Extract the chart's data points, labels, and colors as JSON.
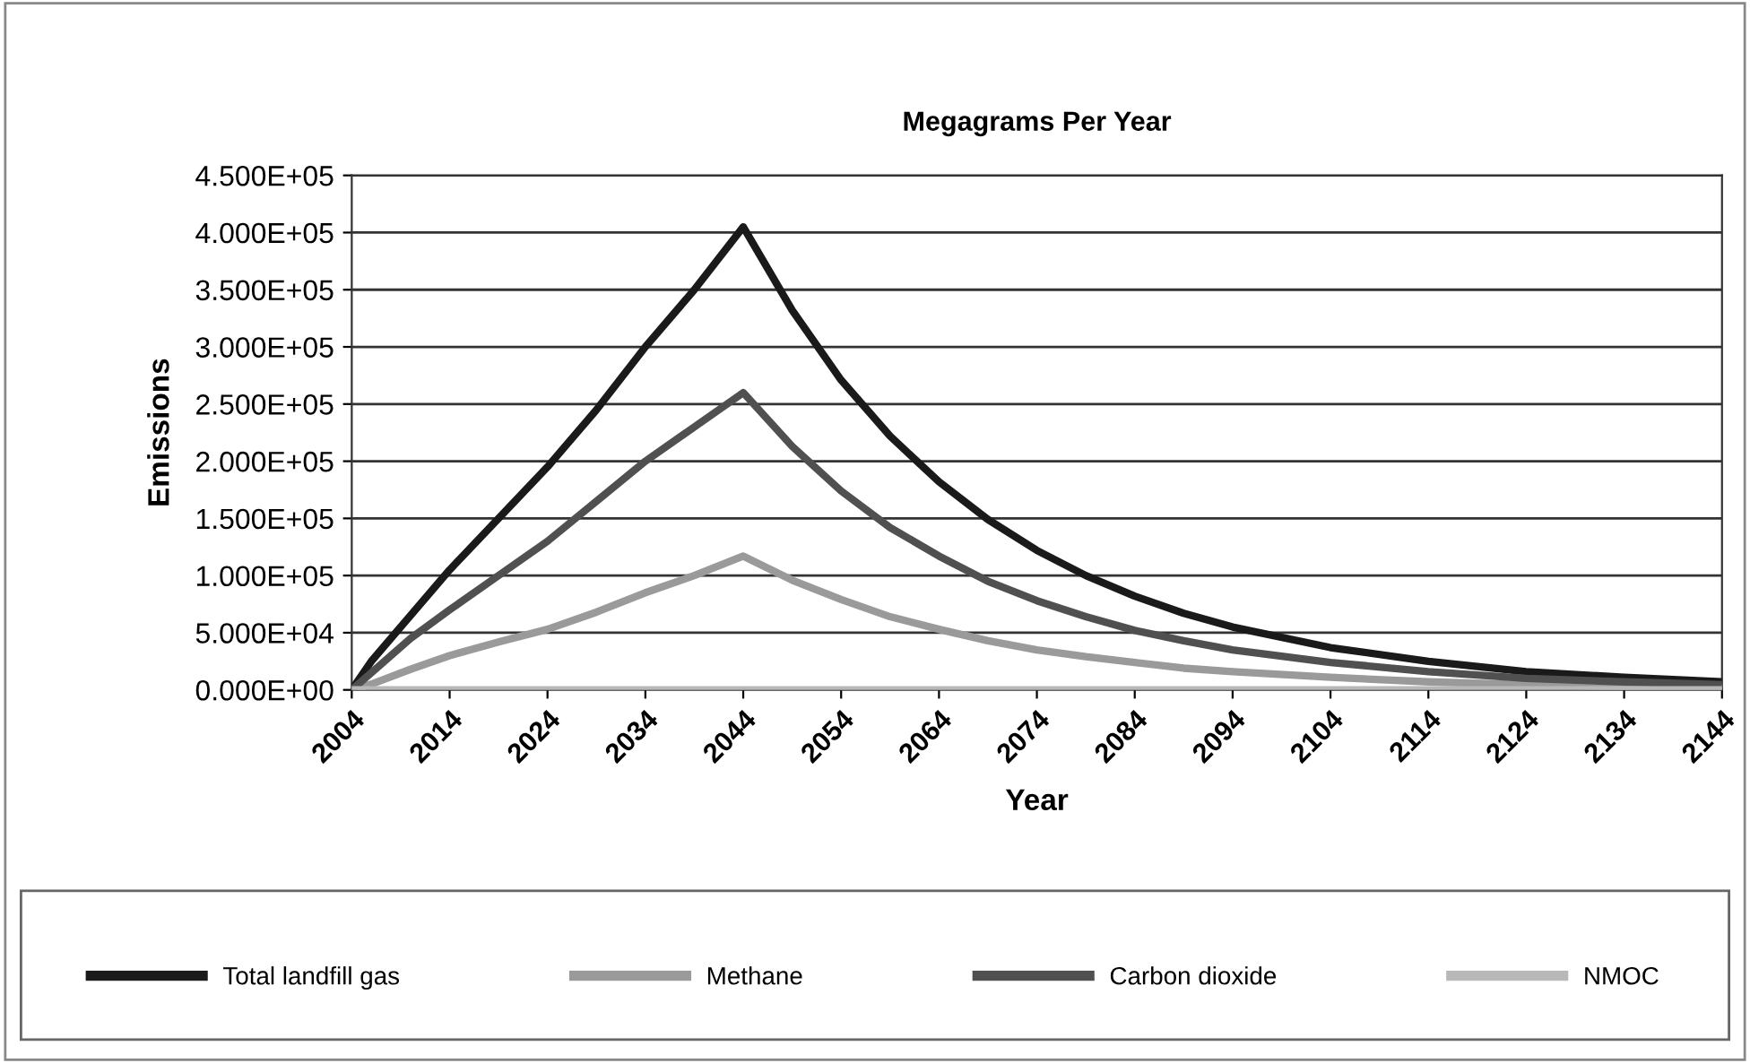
{
  "chart_data": {
    "type": "line",
    "title": "Megagrams Per Year",
    "xlabel": "Year",
    "ylabel": "Emissions",
    "xlim": [
      2004,
      2144
    ],
    "xticks": [
      2004,
      2014,
      2024,
      2034,
      2044,
      2054,
      2064,
      2074,
      2084,
      2094,
      2104,
      2114,
      2124,
      2134,
      2144
    ],
    "ylim": [
      0,
      450000
    ],
    "yticks": [
      {
        "value": 0,
        "label": "0.000E+00"
      },
      {
        "value": 50000,
        "label": "5.000E+04"
      },
      {
        "value": 100000,
        "label": "1.000E+05"
      },
      {
        "value": 150000,
        "label": "1.500E+05"
      },
      {
        "value": 200000,
        "label": "2.000E+05"
      },
      {
        "value": 250000,
        "label": "2.500E+05"
      },
      {
        "value": 300000,
        "label": "3.000E+05"
      },
      {
        "value": 350000,
        "label": "3.500E+05"
      },
      {
        "value": 400000,
        "label": "4.000E+05"
      },
      {
        "value": 450000,
        "label": "4.500E+05"
      }
    ],
    "x": [
      2004,
      2006,
      2010,
      2014,
      2019,
      2024,
      2029,
      2034,
      2039,
      2044,
      2049,
      2054,
      2059,
      2064,
      2069,
      2074,
      2079,
      2084,
      2089,
      2094,
      2104,
      2114,
      2124,
      2134,
      2144
    ],
    "series": [
      {
        "name": "Total landfill gas",
        "color": "#1a1a1a",
        "values": [
          0,
          25000,
          65000,
          105000,
          150000,
          195000,
          245000,
          300000,
          350000,
          405000,
          332000,
          271000,
          222000,
          182000,
          149000,
          122000,
          100000,
          82000,
          67000,
          55000,
          37000,
          25000,
          16000,
          11000,
          7000
        ]
      },
      {
        "name": "Methane",
        "color": "#9a9a9a",
        "values": [
          0,
          5000,
          18000,
          30000,
          42000,
          53000,
          68000,
          85000,
          100000,
          117000,
          96000,
          79000,
          64000,
          53000,
          43000,
          35000,
          29000,
          24000,
          19000,
          16000,
          11000,
          7000,
          4600,
          3000,
          2000
        ]
      },
      {
        "name": "Carbon dioxide",
        "color": "#505050",
        "values": [
          0,
          15000,
          45000,
          70000,
          100000,
          130000,
          165000,
          200000,
          230000,
          260000,
          213000,
          174000,
          142000,
          117000,
          95000,
          78000,
          64000,
          52000,
          43000,
          35000,
          24000,
          16000,
          10000,
          7000,
          4500
        ]
      },
      {
        "name": "NMOC",
        "color": "#b8b8b8",
        "values": [
          0,
          0,
          0,
          0,
          0,
          0,
          0,
          0,
          0,
          0,
          0,
          0,
          0,
          0,
          0,
          0,
          0,
          0,
          0,
          0,
          0,
          0,
          0,
          0,
          0
        ]
      }
    ],
    "grid": "y",
    "legend": "bottom",
    "marker": "none",
    "line_style": "solid"
  }
}
